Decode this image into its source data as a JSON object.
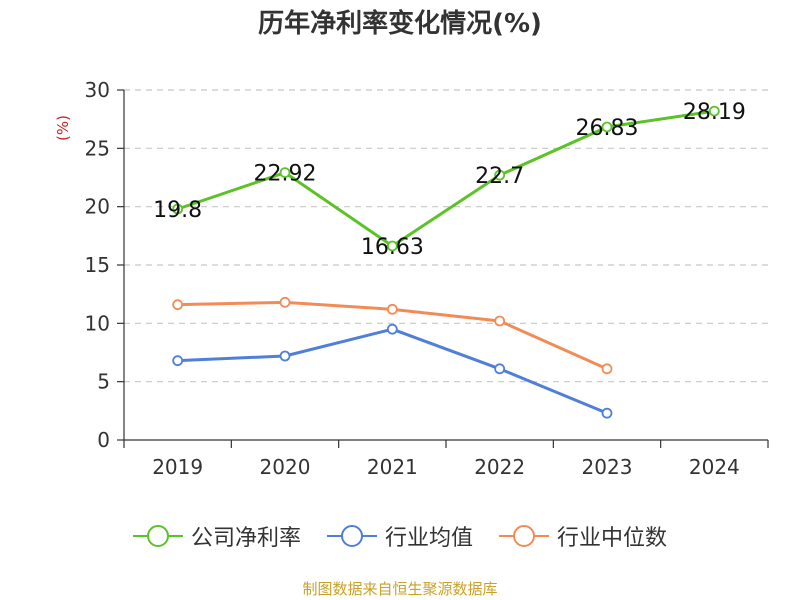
{
  "chart_data": {
    "type": "line",
    "title": "历年净利率变化情况(%)",
    "ylabel": "(%)",
    "xlabel": "",
    "categories": [
      "2019",
      "2020",
      "2021",
      "2022",
      "2023",
      "2024"
    ],
    "ylim": [
      0,
      30
    ],
    "yticks": [
      0,
      5,
      10,
      15,
      20,
      25,
      30
    ],
    "grid": true,
    "legend_position": "bottom",
    "series": [
      {
        "name": "公司净利率",
        "color": "#5bc228",
        "values": [
          19.8,
          22.92,
          16.63,
          22.7,
          26.83,
          28.19
        ],
        "labels": [
          "19.8",
          "22.92",
          "16.63",
          "22.7",
          "26.83",
          "28.19"
        ]
      },
      {
        "name": "行业均值",
        "color": "#4f7fd8",
        "values": [
          6.8,
          7.2,
          9.5,
          6.1,
          2.3,
          null
        ]
      },
      {
        "name": "行业中位数",
        "color": "#f28c57",
        "values": [
          11.6,
          11.8,
          11.2,
          10.2,
          6.1,
          null
        ]
      }
    ]
  },
  "source": "制图数据来自恒生聚源数据库"
}
